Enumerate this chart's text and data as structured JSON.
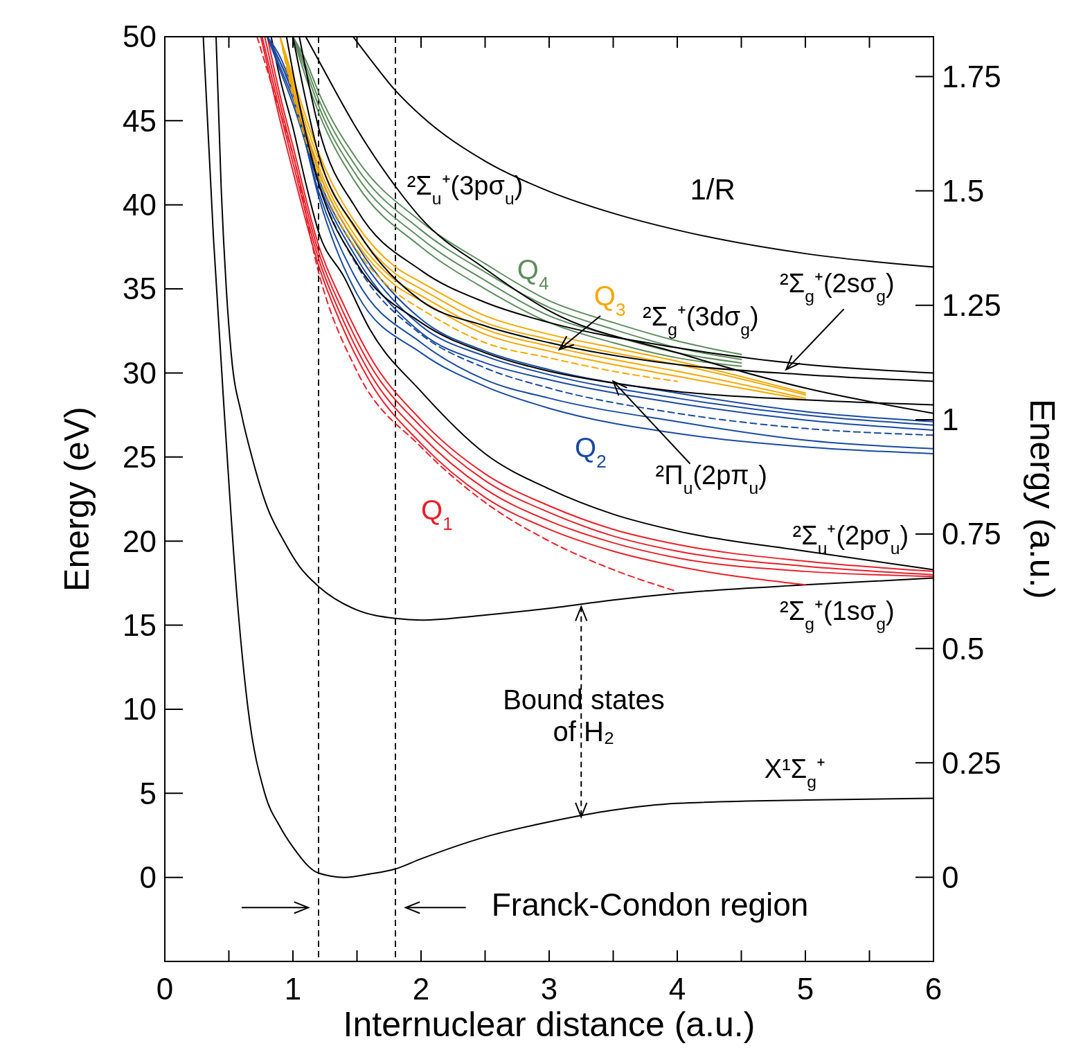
{
  "chart_data": {
    "type": "line",
    "xlabel": "Internuclear distance (a.u.)",
    "ylabel": "Energy (eV)",
    "y2label": "Energy (a.u.)",
    "xlim": [
      0,
      6
    ],
    "xticks": [
      0,
      {
        "value": 0.5,
        "label": null
      },
      1,
      {
        "value": 1.5,
        "label": null
      },
      2,
      {
        "value": 2.5,
        "label": null
      },
      3,
      {
        "value": 3.5,
        "label": null
      },
      4,
      {
        "value": 4.5,
        "label": null
      },
      5,
      {
        "value": 5.5,
        "label": null
      },
      6
    ],
    "ylim": [
      -5,
      50
    ],
    "yticks": [
      0,
      5,
      10,
      15,
      20,
      25,
      30,
      35,
      40,
      45,
      50
    ],
    "y2lim": [
      -0.184,
      1.837
    ],
    "y2ticks": [
      0,
      0.25,
      0.5,
      0.75,
      1,
      1.25,
      1.5,
      1.75
    ],
    "series": [
      {
        "color": "#000000",
        "x": [
          0.3,
          0.38,
          0.47,
          0.56,
          0.65,
          0.78,
          0.9,
          1,
          1.2,
          1.4,
          1.6,
          1.8,
          2,
          2.5,
          3,
          3.5,
          4,
          5,
          6
        ],
        "values": [
          50,
          38,
          27,
          17,
          10,
          5,
          3,
          1.8,
          0.25,
          0,
          0.2,
          0.5,
          1.1,
          2.4,
          3.3,
          4,
          4.4,
          4.6,
          4.7
        ]
      },
      {
        "color": "#000000",
        "x": [
          0.4,
          0.44,
          0.48,
          0.52,
          0.6,
          0.68,
          0.8,
          0.93,
          1.05,
          1.2,
          1.5,
          1.8,
          2,
          2.5,
          3,
          3.5,
          4,
          5,
          6
        ],
        "values": [
          50,
          41,
          35,
          31,
          27.5,
          25,
          22,
          20,
          18.5,
          17.3,
          15.9,
          15.4,
          15.3,
          15.6,
          16,
          16.5,
          16.9,
          17.4,
          17.8
        ]
      },
      {
        "color": "#000000",
        "x": [
          0.83,
          0.9,
          1,
          1.1,
          1.2,
          1.4,
          1.6,
          2,
          2.5,
          3,
          3.5,
          4,
          5,
          6
        ],
        "values": [
          50,
          47.5,
          44.6,
          41.3,
          38.4,
          35.7,
          32.6,
          28.9,
          25.2,
          23.1,
          21.6,
          20.6,
          19.4,
          18.3
        ]
      },
      {
        "name": "Q$_{1}$",
        "color": "#e8202a",
        "x": [
          0.8,
          0.9,
          1,
          1.2,
          1.4,
          1.6,
          2,
          2.5,
          3,
          3.5,
          4,
          5,
          6
        ],
        "values": [
          50,
          46.5,
          43.5,
          37.6,
          34,
          31,
          27.2,
          24,
          22.1,
          20.7,
          19.8,
          18.8,
          18.2
        ]
      },
      {
        "color": "#e8202a",
        "x": [
          0.78,
          0.9,
          1,
          1.2,
          1.4,
          1.6,
          2,
          2.5,
          3,
          3.5,
          4,
          5,
          6
        ],
        "values": [
          50,
          46,
          43,
          37.2,
          33.5,
          30.5,
          26.8,
          23.6,
          21.7,
          20.3,
          19.4,
          18.5,
          18
        ]
      },
      {
        "color": "#e8202a",
        "x": [
          0.76,
          0.9,
          1,
          1.2,
          1.4,
          1.6,
          2,
          2.5,
          3,
          3.5,
          4,
          5,
          6
        ],
        "values": [
          50,
          45.5,
          42.5,
          36.8,
          33,
          30,
          26.3,
          23.1,
          21.2,
          19.9,
          19,
          18.2,
          17.9
        ]
      },
      {
        "color": "#e8202a",
        "x": [
          0.75,
          0.9,
          1,
          1.2,
          1.4,
          1.6,
          2,
          2.5,
          3,
          3.5,
          4,
          5
        ],
        "values": [
          50,
          45,
          42,
          36.4,
          32.5,
          29.5,
          25.8,
          22.6,
          20.7,
          19.4,
          18.5,
          17.4
        ]
      },
      {
        "color": "#e8202a",
        "line_style": "dashed",
        "x": [
          0.72,
          0.8,
          0.9,
          1,
          1.2,
          1.5,
          2,
          2.5,
          3,
          3.5,
          4
        ],
        "values": [
          50,
          48,
          45.5,
          43,
          36,
          30.1,
          25.6,
          22.3,
          20,
          18.3,
          17
        ]
      },
      {
        "name": "Q$_{2}$",
        "color": "#1a4aa0",
        "x": [
          0.8,
          0.9,
          1,
          1.2,
          1.5,
          2,
          2.5,
          3,
          4,
          5,
          6
        ],
        "values": [
          50,
          48.5,
          46.7,
          40.5,
          34.7,
          31.2,
          29.2,
          27.9,
          26.4,
          25.6,
          25.2
        ]
      },
      {
        "color": "#1a4aa0",
        "x": [
          0.8,
          0.9,
          1,
          1.2,
          1.5,
          2,
          2.5,
          3,
          4,
          5,
          6
        ],
        "values": [
          50,
          48.2,
          46.3,
          40.8,
          35.5,
          31.8,
          29.6,
          28.5,
          27.1,
          26,
          25.5
        ]
      },
      {
        "color": "#1a4aa0",
        "x": [
          0.8,
          0.9,
          1,
          1.2,
          1.5,
          2,
          2.5,
          3,
          4,
          5,
          6
        ],
        "values": [
          50,
          48,
          46,
          41.3,
          36.8,
          32.4,
          30.6,
          29.6,
          28.2,
          27.2,
          26.6
        ]
      },
      {
        "color": "#1a4aa0",
        "x": [
          0.8,
          0.9,
          1,
          1.2,
          1.5,
          2,
          2.5,
          3,
          4,
          5,
          6
        ],
        "values": [
          50,
          48.5,
          46.6,
          41.6,
          37.2,
          32.8,
          31,
          29.9,
          28.5,
          27.5,
          26.9
        ]
      },
      {
        "color": "#1a4aa0",
        "x": [
          0.8,
          0.9,
          1,
          1.2,
          1.5,
          2,
          2.5,
          3,
          4,
          5,
          6
        ],
        "values": [
          50,
          48.8,
          46.9,
          42,
          37.6,
          33.2,
          31.3,
          30.2,
          28.8,
          27.7,
          27.1
        ]
      },
      {
        "color": "#1a4aa0",
        "line_style": "dashed",
        "x": [
          0.8,
          0.9,
          1,
          1.2,
          1.5,
          2,
          2.5,
          3,
          4,
          5,
          6
        ],
        "values": [
          50,
          48.5,
          46.6,
          41.2,
          36.4,
          32.3,
          30.3,
          29.1,
          27.6,
          26.7,
          26.3
        ]
      },
      {
        "name": "Q$_{3}$",
        "color": "#f5a800",
        "x": [
          0.9,
          1,
          1.2,
          1.5,
          1.8,
          2,
          2.5,
          3,
          3.5,
          4,
          5
        ],
        "values": [
          50,
          47,
          42.3,
          38,
          35.5,
          34.6,
          32.6,
          31.6,
          30.8,
          30.1,
          28.5
        ]
      },
      {
        "color": "#f5a800",
        "x": [
          0.9,
          1,
          1.2,
          1.5,
          1.8,
          2,
          2.5,
          3,
          3.5,
          4,
          5
        ],
        "values": [
          50,
          47.3,
          42.7,
          38.4,
          35.9,
          35,
          33,
          32,
          31.2,
          30.5,
          28.7
        ]
      },
      {
        "color": "#f5a800",
        "x": [
          0.9,
          1,
          1.2,
          1.5,
          1.8,
          2,
          2.5,
          3,
          3.5,
          4,
          5
        ],
        "values": [
          50,
          47.6,
          43.1,
          38.8,
          36.3,
          35.4,
          33.4,
          32.3,
          31.5,
          30.7,
          28.8
        ]
      },
      {
        "color": "#f5a800",
        "x": [
          0.9,
          1,
          1.2,
          1.5,
          1.8,
          2,
          2.5,
          3,
          3.5,
          4,
          5
        ],
        "values": [
          50,
          46.8,
          42,
          37.7,
          35.2,
          34.3,
          32.3,
          31.3,
          30.5,
          29.8,
          28.4
        ]
      },
      {
        "color": "#f5a800",
        "line_style": "dashed",
        "x": [
          0.9,
          1,
          1.2,
          1.5,
          1.8,
          2,
          2.5,
          3,
          3.5,
          4
        ],
        "values": [
          50,
          46.5,
          41.7,
          37.3,
          34.8,
          33.8,
          31.8,
          30.9,
          30.1,
          29.5
        ]
      },
      {
        "name": "Q$_{4}$",
        "color": "#5e8c5e",
        "x": [
          1,
          1.1,
          1.2,
          1.5,
          2,
          2.5,
          3,
          3.5,
          4,
          4.5
        ],
        "values": [
          50,
          48,
          45.9,
          41.7,
          38,
          35.5,
          33.4,
          32.2,
          31.2,
          30.6
        ]
      },
      {
        "color": "#5e8c5e",
        "x": [
          1,
          1.1,
          1.2,
          1.5,
          2,
          2.5,
          3,
          3.5,
          4,
          4.5
        ],
        "values": [
          50,
          48.3,
          46.3,
          42.2,
          38.5,
          36,
          33.9,
          32.6,
          31.5,
          30.8
        ]
      },
      {
        "color": "#5e8c5e",
        "x": [
          1,
          1.1,
          1.2,
          1.5,
          2,
          2.5,
          3,
          3.5,
          4,
          4.5
        ],
        "values": [
          50,
          48.6,
          46.7,
          42.7,
          39,
          36.5,
          34.3,
          33,
          31.9,
          31.1
        ]
      },
      {
        "color": "#5e8c5e",
        "x": [
          1,
          1.1,
          1.2,
          1.5,
          2,
          2.5,
          3,
          3.5,
          4,
          4.5
        ],
        "values": [
          50,
          47.6,
          45.5,
          41.2,
          37.5,
          35,
          33,
          31.8,
          30.9,
          30.4
        ]
      },
      {
        "color": "#000000",
        "x": [
          0.95,
          1,
          1.2,
          1.5,
          2,
          2.5,
          3,
          3.5,
          4,
          5,
          6
        ],
        "values": [
          50,
          47.9,
          41.3,
          36.5,
          33,
          31.2,
          30.1,
          29.4,
          28.9,
          28.4,
          28.1
        ]
      },
      {
        "color": "#000000",
        "x": [
          1,
          1.2,
          1.5,
          2,
          2.5,
          3,
          4,
          5,
          6
        ],
        "values": [
          50,
          43,
          38.5,
          34.3,
          32.8,
          31.8,
          30.5,
          29.9,
          29.5
        ]
      },
      {
        "color": "#000000",
        "x": [
          1.05,
          1.2,
          1.5,
          2,
          2.5,
          3,
          4,
          5,
          6
        ],
        "values": [
          50,
          44.6,
          39.7,
          36.1,
          34.2,
          33,
          31.5,
          30.5,
          30
        ]
      },
      {
        "color": "#000000",
        "x": [
          1.1,
          1.2,
          1.5,
          1.8,
          2,
          2.5,
          3,
          4,
          5,
          6
        ],
        "values": [
          50,
          48.6,
          44.5,
          41.1,
          39.2,
          36.2,
          33.7,
          31.2,
          29.1,
          27.6
        ]
      },
      {
        "color": "#000000",
        "x": [
          1.47,
          1.6,
          1.8,
          2,
          2.5,
          3,
          3.5,
          4,
          5,
          6
        ],
        "values": [
          50,
          48.7,
          46.8,
          45.3,
          42.6,
          40.8,
          39.5,
          38.5,
          37.1,
          36.3
        ]
      }
    ],
    "ref_lines": [
      {
        "axis": "x",
        "value": 1.2,
        "color": "#000000",
        "line_style": "dashed"
      },
      {
        "axis": "x",
        "value": 1.8,
        "color": "#000000",
        "line_style": "dashed"
      }
    ],
    "annotations": [
      "1/R",
      "²Σ$_{u}$⁺(3pσ$_{u}$)",
      {
        "text": "²Σ$_{g}$⁺(2sσ$_{g}$)",
        "x": 4.85,
        "y": 30.2
      },
      "²Σ$_{g}$⁺(3dσ$_{g}$)",
      {
        "text": "²Π$_{u}$(2pπ$_{u}$)",
        "x": 3.5,
        "y": 29.5
      },
      "²Σ$_{u}$⁺(2pσ$_{u}$)",
      "²Σ$_{g}$⁺(1sσ$_{g}$)",
      "X¹Σ$_{g}$⁺",
      "Bound states of H₂",
      "Franck-Condon region"
    ]
  }
}
